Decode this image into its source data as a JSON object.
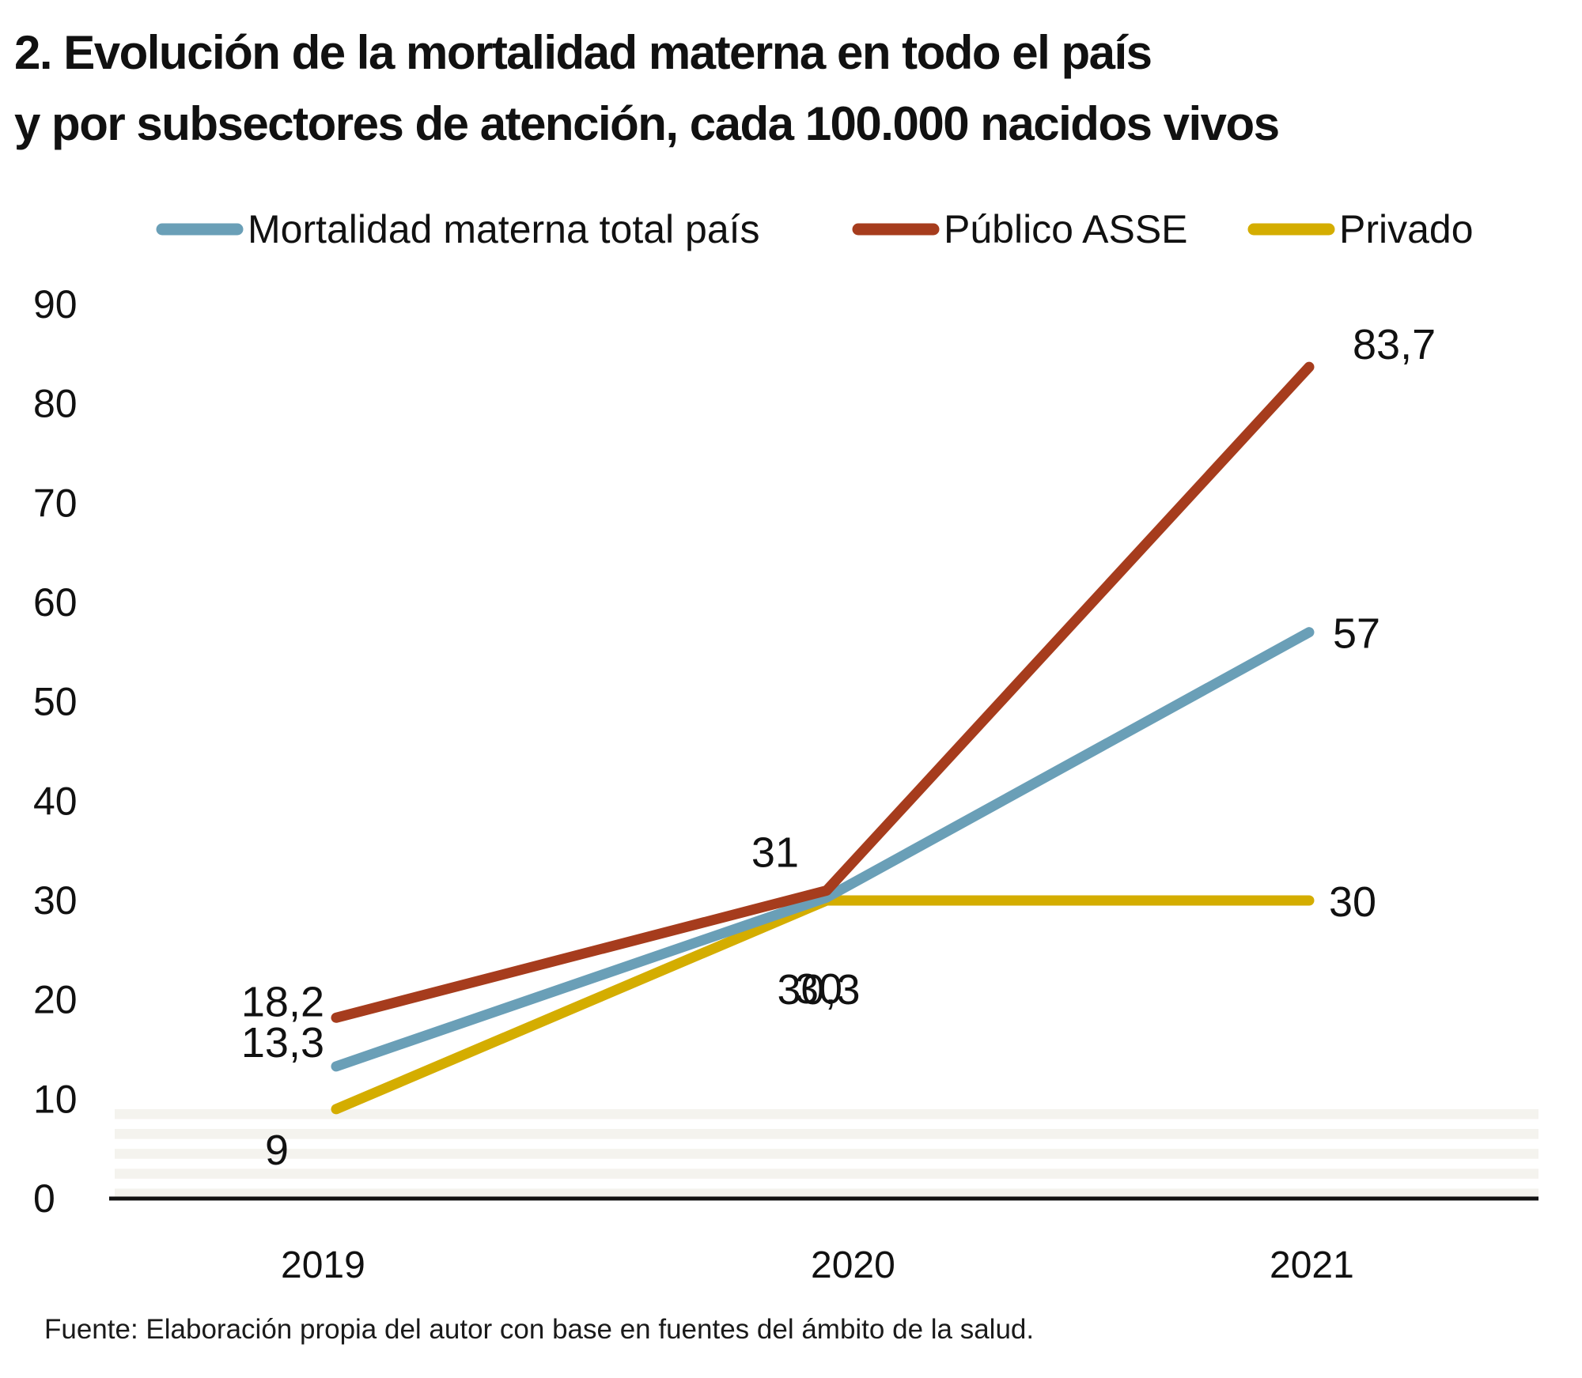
{
  "header": {
    "title_line1": "2. Evolución de la mortalidad materna en todo el país",
    "title_line2": "y por subsectores de atención, cada 100.000 nacidos vivos"
  },
  "footer": {
    "source": "Fuente: Elaboración propia del autor con base en fuentes del ámbito de la salud."
  },
  "chart_data": {
    "type": "line",
    "title": "2. Evolución de la mortalidad materna en todo el país y por subsectores de atención, cada 100.000 nacidos vivos",
    "x": [
      "2019",
      "2020",
      "2021"
    ],
    "ylim": [
      0,
      90
    ],
    "yticks": [
      "0",
      "10",
      "20",
      "30",
      "40",
      "50",
      "60",
      "70",
      "80",
      "90"
    ],
    "grid": "alternating horizontal bands",
    "legend_position": "top",
    "series": [
      {
        "name": "Mortalidad materna total país",
        "color": "#6a9fb7",
        "values": [
          13.3,
          30.3,
          57
        ],
        "labels": [
          "13,3",
          "30,3",
          "57"
        ]
      },
      {
        "name": "Público ASSE",
        "color": "#a63c1d",
        "values": [
          18.2,
          31,
          83.7
        ],
        "labels": [
          "18,2",
          "31",
          "83,7"
        ]
      },
      {
        "name": "Privado",
        "color": "#d4ad00",
        "values": [
          9,
          30,
          30
        ],
        "labels": [
          "9",
          "30",
          "30"
        ]
      }
    ],
    "colors": {
      "band": "#f4f3ee",
      "axis": "#111111"
    }
  }
}
